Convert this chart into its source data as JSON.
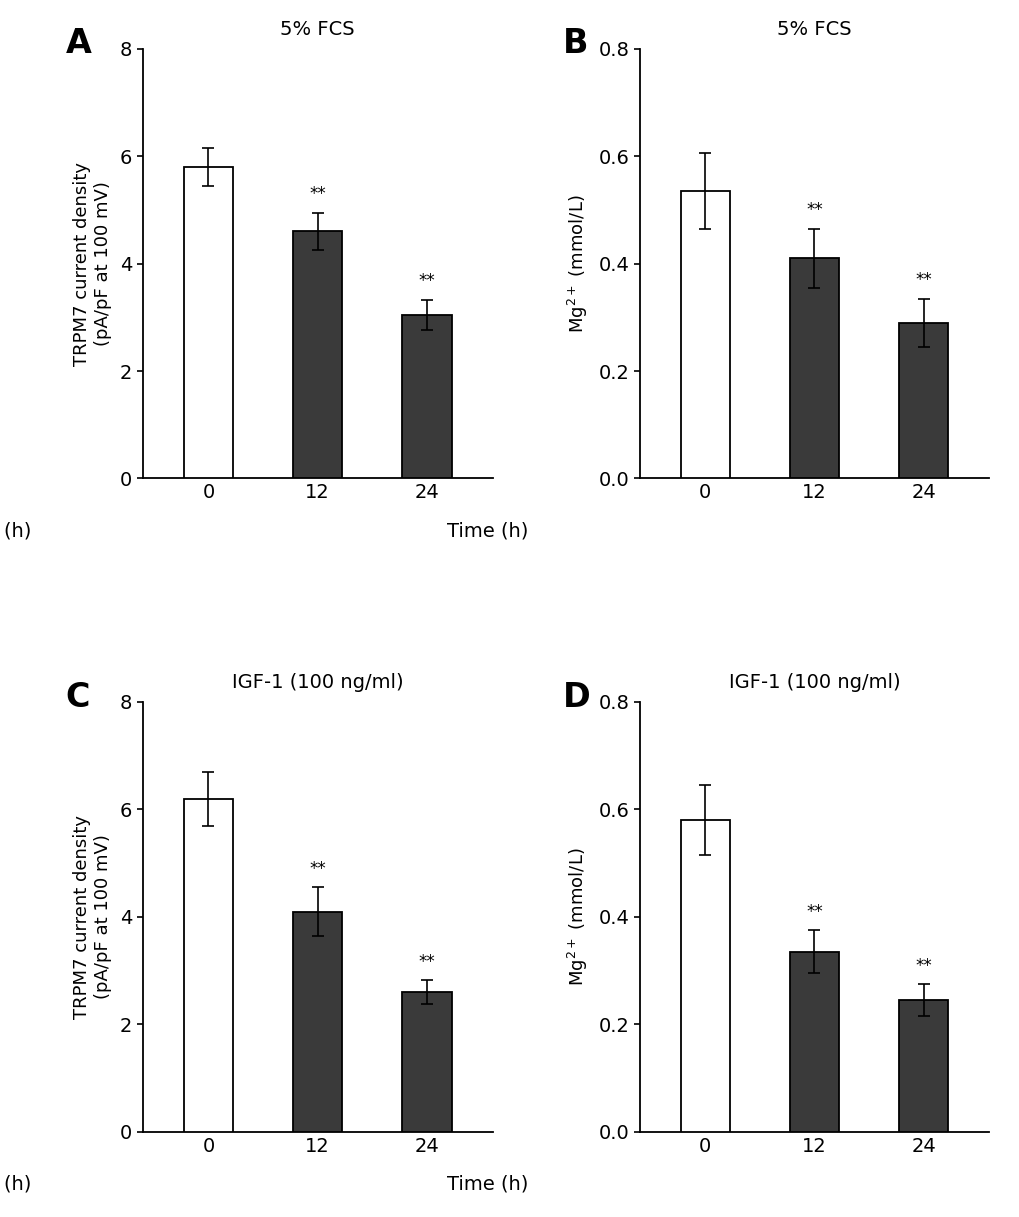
{
  "panels": [
    {
      "label": "A",
      "title": "5% FCS",
      "ylabel": "TRPM7 current density\n(pA/pF at 100 mV)",
      "ylim": [
        0,
        8
      ],
      "yticks": [
        0,
        2,
        4,
        6,
        8
      ],
      "categories": [
        "0",
        "12",
        "24"
      ],
      "values": [
        5.8,
        4.6,
        3.05
      ],
      "errors": [
        0.35,
        0.35,
        0.28
      ],
      "bar_colors": [
        "#ffffff",
        "#3a3a3a",
        "#3a3a3a"
      ],
      "bar_edgecolors": [
        "#000000",
        "#000000",
        "#000000"
      ],
      "significance": [
        "",
        "**",
        "**"
      ]
    },
    {
      "label": "B",
      "title": "5% FCS",
      "ylabel": "Mg$^{2+}$ (mmol/L)",
      "ylim": [
        0,
        0.8
      ],
      "yticks": [
        0.0,
        0.2,
        0.4,
        0.6,
        0.8
      ],
      "categories": [
        "0",
        "12",
        "24"
      ],
      "values": [
        0.535,
        0.41,
        0.29
      ],
      "errors": [
        0.07,
        0.055,
        0.045
      ],
      "bar_colors": [
        "#ffffff",
        "#3a3a3a",
        "#3a3a3a"
      ],
      "bar_edgecolors": [
        "#000000",
        "#000000",
        "#000000"
      ],
      "significance": [
        "",
        "**",
        "**"
      ]
    },
    {
      "label": "C",
      "title": "IGF-1 (100 ng/ml)",
      "ylabel": "TRPM7 current density\n(pA/pF at 100 mV)",
      "ylim": [
        0,
        8
      ],
      "yticks": [
        0,
        2,
        4,
        6,
        8
      ],
      "categories": [
        "0",
        "12",
        "24"
      ],
      "values": [
        6.2,
        4.1,
        2.6
      ],
      "errors": [
        0.5,
        0.45,
        0.22
      ],
      "bar_colors": [
        "#ffffff",
        "#3a3a3a",
        "#3a3a3a"
      ],
      "bar_edgecolors": [
        "#000000",
        "#000000",
        "#000000"
      ],
      "significance": [
        "",
        "**",
        "**"
      ]
    },
    {
      "label": "D",
      "title": "IGF-1 (100 ng/ml)",
      "ylabel": "Mg$^{2+}$ (mmol/L)",
      "ylim": [
        0,
        0.8
      ],
      "yticks": [
        0.0,
        0.2,
        0.4,
        0.6,
        0.8
      ],
      "categories": [
        "0",
        "12",
        "24"
      ],
      "values": [
        0.58,
        0.335,
        0.245
      ],
      "errors": [
        0.065,
        0.04,
        0.03
      ],
      "bar_colors": [
        "#ffffff",
        "#3a3a3a",
        "#3a3a3a"
      ],
      "bar_edgecolors": [
        "#000000",
        "#000000",
        "#000000"
      ],
      "significance": [
        "",
        "**",
        "**"
      ]
    }
  ],
  "xlabel_prefix": "Time (h)",
  "background_color": "#ffffff",
  "bar_width": 0.45,
  "label_fontsize": 24,
  "title_fontsize": 14,
  "tick_fontsize": 14,
  "axis_fontsize": 13,
  "sig_fontsize": 12
}
